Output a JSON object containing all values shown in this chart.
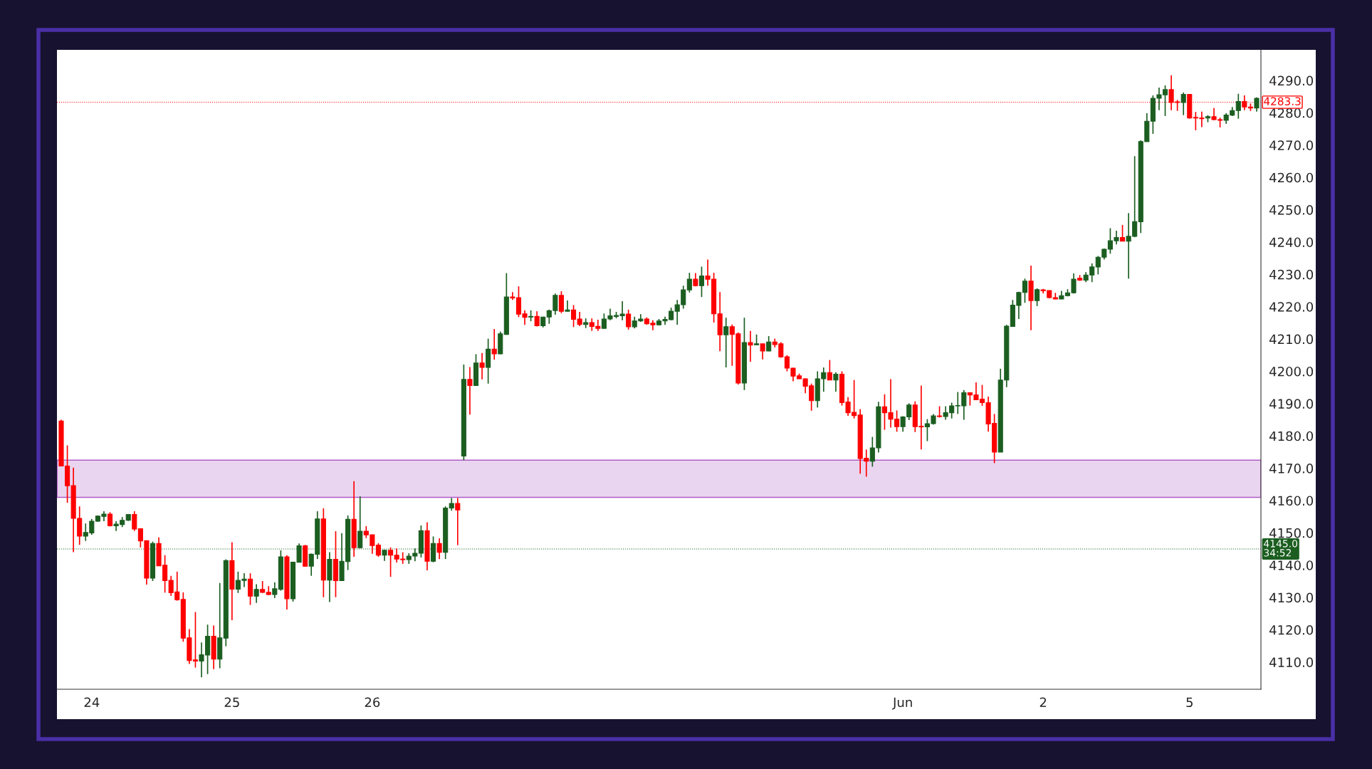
{
  "chart_data": {
    "type": "candlestick",
    "categories": [
      null,
      null,
      null,
      null,
      null,
      "24",
      null,
      null,
      null,
      null,
      null,
      null,
      null,
      null,
      null,
      null,
      null,
      null,
      null,
      null,
      null,
      null,
      null,
      null,
      null,
      null,
      null,
      null,
      "25",
      null,
      null,
      null,
      null,
      null,
      null,
      null,
      null,
      null,
      null,
      null,
      null,
      null,
      null,
      null,
      null,
      null,
      null,
      null,
      null,
      null,
      null,
      "26",
      null,
      null,
      null,
      null,
      null,
      null,
      null,
      null,
      null,
      null,
      null,
      null,
      null,
      null,
      null,
      null,
      null,
      null,
      null,
      null,
      null,
      null,
      null,
      null,
      null,
      null,
      null,
      null,
      null,
      null,
      null,
      null,
      null,
      null,
      null,
      null,
      null,
      null,
      null,
      null,
      null,
      null,
      null,
      null,
      null,
      null,
      null,
      null,
      null,
      null,
      null,
      null,
      null,
      null,
      null,
      null,
      null,
      null,
      null,
      null,
      null,
      null,
      null,
      null,
      null,
      null,
      null,
      null,
      null,
      null,
      null,
      null,
      null,
      null,
      null,
      null,
      null,
      null,
      null,
      null,
      null,
      null,
      null,
      null,
      null,
      null,
      "Jun",
      null,
      null,
      null,
      null,
      null,
      null,
      null,
      null,
      null,
      null,
      null,
      null,
      null,
      null,
      null,
      null,
      null,
      null,
      null,
      null,
      null,
      null,
      "2",
      null,
      null,
      null,
      null,
      null,
      null,
      null,
      null,
      null,
      null,
      null,
      null,
      null,
      null,
      null,
      null,
      null,
      null,
      null,
      null,
      null,
      null,
      null,
      "5",
      null,
      null,
      null,
      null,
      null,
      null,
      null,
      null,
      null,
      null,
      null
    ],
    "ohlc": [
      [
        4184.6,
        4185.0,
        4170.7,
        4170.7
      ],
      [
        4170.7,
        4177.1,
        4159.3,
        4164.6
      ],
      [
        4164.6,
        4170.2,
        4144.0,
        4154.5
      ],
      [
        4154.5,
        4158.2,
        4146.3,
        4149.0
      ],
      [
        4149.0,
        4152.9,
        4147.5,
        4150.1
      ],
      [
        4150.0,
        4154.3,
        4149.4,
        4153.6
      ],
      [
        4153.6,
        4155.4,
        4153.4,
        4155.2
      ],
      [
        4155.1,
        4156.7,
        4153.6,
        4155.8
      ],
      [
        4155.8,
        4156.4,
        4152.0,
        4152.2
      ],
      [
        4152.2,
        4153.6,
        4150.6,
        4152.7
      ],
      [
        4152.6,
        4154.9,
        4151.8,
        4153.9
      ],
      [
        4153.9,
        4155.8,
        4153.7,
        4155.7
      ],
      [
        4155.7,
        4156.7,
        4150.6,
        4151.2
      ],
      [
        4151.3,
        4151.4,
        4145.5,
        4147.5
      ],
      [
        4147.6,
        4147.6,
        4134.0,
        4136.0
      ],
      [
        4136.0,
        4147.3,
        4135.1,
        4146.7
      ],
      [
        4146.7,
        4148.6,
        4139.8,
        4139.8
      ],
      [
        4140.0,
        4143.1,
        4131.5,
        4135.2
      ],
      [
        4135.3,
        4136.7,
        4130.5,
        4131.5
      ],
      [
        4131.7,
        4138.0,
        4129.0,
        4129.3
      ],
      [
        4129.4,
        4131.6,
        4116.3,
        4117.4
      ],
      [
        4117.5,
        4120.2,
        4109.4,
        4110.5
      ],
      [
        4110.7,
        4125.5,
        4108.3,
        4110.3
      ],
      [
        4110.3,
        4116.1,
        4105.3,
        4112.3
      ],
      [
        4112.2,
        4121.6,
        4106.3,
        4118.0
      ],
      [
        4118.0,
        4121.3,
        4107.8,
        4110.9
      ],
      [
        4110.9,
        4134.5,
        4108.1,
        4117.5
      ],
      [
        4117.4,
        4141.8,
        4114.9,
        4141.4
      ],
      [
        4141.4,
        4147.1,
        4123.0,
        4132.6
      ],
      [
        4132.6,
        4138.0,
        4131.4,
        4135.3
      ],
      [
        4135.3,
        4137.5,
        4133.2,
        4135.7
      ],
      [
        4135.7,
        4137.5,
        4127.7,
        4130.4
      ],
      [
        4130.4,
        4134.1,
        4128.3,
        4132.5
      ],
      [
        4132.5,
        4135.1,
        4131.4,
        4131.6
      ],
      [
        4131.6,
        4133.5,
        4130.7,
        4130.9
      ],
      [
        4130.9,
        4134.7,
        4129.8,
        4132.7
      ],
      [
        4132.5,
        4144.6,
        4132.1,
        4142.6
      ],
      [
        4142.6,
        4143.1,
        4126.3,
        4129.6
      ],
      [
        4129.6,
        4141.1,
        4128.7,
        4140.9
      ],
      [
        4140.9,
        4146.7,
        4140.8,
        4146.0
      ],
      [
        4146.0,
        4146.3,
        4139.5,
        4139.7
      ],
      [
        4139.7,
        4143.6,
        4136.7,
        4143.4
      ],
      [
        4143.4,
        4156.7,
        4141.9,
        4154.3
      ],
      [
        4154.3,
        4157.6,
        4130.1,
        4135.4
      ],
      [
        4135.4,
        4144.0,
        4128.6,
        4141.8
      ],
      [
        4141.8,
        4150.5,
        4130.1,
        4135.2
      ],
      [
        4135.2,
        4149.9,
        4135.1,
        4141.2
      ],
      [
        4141.1,
        4155.4,
        4138.5,
        4154.2
      ],
      [
        4154.2,
        4166.0,
        4142.6,
        4145.4
      ],
      [
        4145.4,
        4161.3,
        4145.2,
        4150.5
      ],
      [
        4150.5,
        4152.1,
        4148.4,
        4149.4
      ],
      [
        4149.4,
        4149.5,
        4143.5,
        4146.1
      ],
      [
        4146.2,
        4146.8,
        4142.6,
        4143.1
      ],
      [
        4143.1,
        4144.8,
        4141.3,
        4144.6
      ],
      [
        4144.6,
        4145.5,
        4136.4,
        4143.1
      ],
      [
        4143.1,
        4145.2,
        4140.8,
        4141.9
      ],
      [
        4141.9,
        4144.0,
        4140.4,
        4141.7
      ],
      [
        4141.7,
        4143.7,
        4140.4,
        4142.8
      ],
      [
        4142.8,
        4145.2,
        4141.2,
        4143.7
      ],
      [
        4143.7,
        4152.3,
        4142.4,
        4150.7
      ],
      [
        4150.7,
        4153.3,
        4138.4,
        4141.2
      ],
      [
        4141.2,
        4148.9,
        4140.9,
        4146.7
      ],
      [
        4146.7,
        4148.3,
        4141.9,
        4144.0
      ],
      [
        4144.0,
        4158.2,
        4141.9,
        4157.7
      ],
      [
        4157.7,
        4160.8,
        4156.9,
        4159.1
      ],
      [
        4159.1,
        4160.8,
        4146.2,
        4157.1
      ],
      [
        4173.8,
        4202.1,
        4172.5,
        4197.5
      ],
      [
        4197.5,
        4201.3,
        4186.6,
        4195.6
      ],
      [
        4195.6,
        4205.3,
        4195.5,
        4202.6
      ],
      [
        4202.6,
        4205.7,
        4197.5,
        4201.2
      ],
      [
        4201.2,
        4210.1,
        4196.2,
        4206.9
      ],
      [
        4206.9,
        4213.1,
        4203.6,
        4205.4
      ],
      [
        4205.4,
        4212.3,
        4205.3,
        4211.6
      ],
      [
        4211.4,
        4230.4,
        4211.3,
        4223.0
      ],
      [
        4223.0,
        4224.5,
        4222.1,
        4222.7
      ],
      [
        4222.8,
        4226.3,
        4216.8,
        4217.7
      ],
      [
        4217.8,
        4218.9,
        4214.4,
        4216.7
      ],
      [
        4216.8,
        4218.9,
        4215.5,
        4217.0
      ],
      [
        4217.0,
        4218.6,
        4213.9,
        4214.1
      ],
      [
        4214.1,
        4216.9,
        4213.6,
        4216.8
      ],
      [
        4216.8,
        4219.1,
        4214.7,
        4218.8
      ],
      [
        4218.8,
        4224.1,
        4217.5,
        4223.5
      ],
      [
        4223.5,
        4224.8,
        4218.0,
        4218.6
      ],
      [
        4218.6,
        4221.9,
        4218.5,
        4219.0
      ],
      [
        4219.0,
        4220.5,
        4213.7,
        4216.1
      ],
      [
        4216.2,
        4218.4,
        4214.0,
        4214.5
      ],
      [
        4214.5,
        4216.4,
        4213.4,
        4215.1
      ],
      [
        4215.1,
        4216.4,
        4212.5,
        4213.9
      ],
      [
        4213.9,
        4216.0,
        4212.5,
        4213.3
      ],
      [
        4213.3,
        4217.9,
        4213.2,
        4216.2
      ],
      [
        4216.2,
        4219.4,
        4215.8,
        4217.2
      ],
      [
        4217.0,
        4218.4,
        4216.4,
        4217.3
      ],
      [
        4217.2,
        4221.7,
        4215.8,
        4217.7
      ],
      [
        4217.7,
        4219.1,
        4212.9,
        4213.8
      ],
      [
        4213.8,
        4216.9,
        4213.3,
        4215.6
      ],
      [
        4215.6,
        4217.7,
        4215.3,
        4216.2
      ],
      [
        4216.2,
        4216.7,
        4214.4,
        4214.7
      ],
      [
        4214.9,
        4215.8,
        4212.7,
        4214.4
      ],
      [
        4214.4,
        4216.2,
        4214.2,
        4215.6
      ],
      [
        4215.6,
        4216.9,
        4214.4,
        4216.1
      ],
      [
        4216.0,
        4219.7,
        4215.8,
        4218.6
      ],
      [
        4218.6,
        4222.1,
        4214.4,
        4220.6
      ],
      [
        4220.6,
        4226.5,
        4219.4,
        4225.2
      ],
      [
        4225.2,
        4230.5,
        4224.4,
        4228.5
      ],
      [
        4228.5,
        4230.4,
        4226.3,
        4226.5
      ],
      [
        4226.5,
        4232.4,
        4223.0,
        4229.5
      ],
      [
        4229.5,
        4234.6,
        4226.5,
        4228.5
      ],
      [
        4228.5,
        4230.5,
        4215.1,
        4217.8
      ],
      [
        4217.8,
        4224.5,
        4206.2,
        4211.3
      ],
      [
        4211.3,
        4216.6,
        4201.2,
        4213.8
      ],
      [
        4213.8,
        4214.5,
        4201.7,
        4211.4
      ],
      [
        4211.6,
        4212.0,
        4195.9,
        4196.4
      ],
      [
        4196.4,
        4216.6,
        4194.2,
        4208.9
      ],
      [
        4208.9,
        4212.5,
        4203.0,
        4208.1
      ],
      [
        4208.2,
        4211.4,
        4208.1,
        4208.5
      ],
      [
        4208.5,
        4208.5,
        4203.7,
        4206.3
      ],
      [
        4206.3,
        4210.9,
        4206.2,
        4209.1
      ],
      [
        4209.1,
        4210.1,
        4207.4,
        4208.3
      ],
      [
        4208.5,
        4209.0,
        4204.2,
        4204.5
      ],
      [
        4204.5,
        4205.0,
        4200.0,
        4201.0
      ],
      [
        4201.0,
        4201.1,
        4196.9,
        4198.5
      ],
      [
        4198.6,
        4199.3,
        4197.6,
        4197.7
      ],
      [
        4197.7,
        4197.8,
        4193.2,
        4195.4
      ],
      [
        4195.5,
        4196.2,
        4187.8,
        4190.9
      ],
      [
        4190.9,
        4200.0,
        4188.8,
        4197.7
      ],
      [
        4197.7,
        4201.2,
        4193.7,
        4199.6
      ],
      [
        4199.6,
        4203.5,
        4197.3,
        4197.3
      ],
      [
        4197.3,
        4199.7,
        4193.7,
        4199.1
      ],
      [
        4199.1,
        4200.0,
        4189.4,
        4190.3
      ],
      [
        4190.5,
        4192.0,
        4186.2,
        4187.2
      ],
      [
        4187.3,
        4197.3,
        4185.4,
        4186.3
      ],
      [
        4186.5,
        4188.3,
        4168.3,
        4173.0
      ],
      [
        4173.1,
        4175.8,
        4167.4,
        4172.2
      ],
      [
        4172.2,
        4179.7,
        4170.5,
        4176.3
      ],
      [
        4176.3,
        4190.6,
        4174.9,
        4189.0
      ],
      [
        4189.0,
        4192.9,
        4181.9,
        4187.2
      ],
      [
        4187.2,
        4197.6,
        4182.6,
        4185.2
      ],
      [
        4185.2,
        4187.9,
        4181.3,
        4182.9
      ],
      [
        4182.9,
        4186.1,
        4181.3,
        4185.9
      ],
      [
        4185.9,
        4190.1,
        4184.9,
        4189.6
      ],
      [
        4189.6,
        4190.7,
        4181.2,
        4182.9
      ],
      [
        4183.0,
        4195.6,
        4175.8,
        4182.8
      ],
      [
        4182.8,
        4185.2,
        4178.4,
        4183.8
      ],
      [
        4183.8,
        4186.8,
        4183.5,
        4186.2
      ],
      [
        4186.2,
        4189.2,
        4185.7,
        4186.0
      ],
      [
        4186.0,
        4189.2,
        4185.0,
        4187.2
      ],
      [
        4187.2,
        4190.3,
        4185.4,
        4189.3
      ],
      [
        4189.3,
        4193.6,
        4186.8,
        4189.4
      ],
      [
        4189.3,
        4194.2,
        4185.0,
        4193.4
      ],
      [
        4193.4,
        4193.4,
        4189.4,
        4192.7
      ],
      [
        4192.7,
        4196.6,
        4191.2,
        4191.2
      ],
      [
        4191.4,
        4195.8,
        4189.3,
        4190.3
      ],
      [
        4190.3,
        4192.2,
        4181.3,
        4183.7
      ],
      [
        4183.9,
        4186.8,
        4171.6,
        4175.0
      ],
      [
        4175.0,
        4200.8,
        4175.0,
        4197.3
      ],
      [
        4197.3,
        4214.4,
        4195.1,
        4214.0
      ],
      [
        4213.9,
        4222.1,
        4213.9,
        4220.5
      ],
      [
        4220.4,
        4224.6,
        4216.2,
        4224.4
      ],
      [
        4224.4,
        4228.7,
        4221.2,
        4227.9
      ],
      [
        4227.9,
        4232.7,
        4212.7,
        4221.9
      ],
      [
        4221.9,
        4225.7,
        4220.2,
        4225.3
      ],
      [
        4225.2,
        4225.5,
        4224.1,
        4224.9
      ],
      [
        4225.0,
        4225.0,
        4222.6,
        4222.8
      ],
      [
        4222.8,
        4224.3,
        4222.3,
        4222.4
      ],
      [
        4222.4,
        4224.9,
        4222.3,
        4223.4
      ],
      [
        4223.4,
        4225.4,
        4223.2,
        4224.3
      ],
      [
        4224.3,
        4230.3,
        4224.1,
        4228.5
      ],
      [
        4228.8,
        4229.8,
        4228.0,
        4228.2
      ],
      [
        4228.2,
        4230.7,
        4227.6,
        4229.8
      ],
      [
        4229.8,
        4233.4,
        4227.6,
        4232.3
      ],
      [
        4232.3,
        4235.7,
        4230.0,
        4235.3
      ],
      [
        4235.3,
        4238.0,
        4234.6,
        4237.8
      ],
      [
        4237.8,
        4244.3,
        4236.4,
        4240.4
      ],
      [
        4240.4,
        4243.5,
        4239.3,
        4241.4
      ],
      [
        4241.4,
        4245.3,
        4240.3,
        4240.3
      ],
      [
        4240.3,
        4249.0,
        4228.7,
        4241.8
      ],
      [
        4241.8,
        4266.6,
        4241.5,
        4246.3
      ],
      [
        4246.3,
        4271.5,
        4242.8,
        4271.1
      ],
      [
        4271.1,
        4279.9,
        4271.1,
        4277.4
      ],
      [
        4277.4,
        4285.4,
        4273.5,
        4284.5
      ],
      [
        4284.5,
        4287.8,
        4280.8,
        4285.6
      ],
      [
        4285.6,
        4288.5,
        4279.0,
        4287.2
      ],
      [
        4287.2,
        4291.6,
        4280.8,
        4283.2
      ],
      [
        4283.4,
        4284.0,
        4280.6,
        4283.2
      ],
      [
        4283.2,
        4286.3,
        4279.3,
        4285.7
      ],
      [
        4285.7,
        4285.7,
        4278.2,
        4278.4
      ],
      [
        4278.6,
        4280.3,
        4274.6,
        4278.4
      ],
      [
        4278.4,
        4280.4,
        4275.6,
        4278.2
      ],
      [
        4278.4,
        4279.3,
        4277.1,
        4278.8
      ],
      [
        4278.8,
        4281.5,
        4277.7,
        4277.9
      ],
      [
        4277.9,
        4278.5,
        4275.5,
        4277.7
      ],
      [
        4277.7,
        4279.9,
        4276.6,
        4279.3
      ],
      [
        4279.3,
        4281.8,
        4279.0,
        4280.7
      ],
      [
        4280.7,
        4285.9,
        4278.2,
        4283.5
      ],
      [
        4283.5,
        4285.4,
        4280.8,
        4281.8
      ],
      [
        4281.8,
        4282.9,
        4280.6,
        4281.5
      ],
      [
        4281.5,
        4284.8,
        4280.4,
        4284.5
      ]
    ],
    "colors": [
      "#ff0000",
      "#ff0000",
      "#ff0000",
      "#ff0000",
      "#1b5e20",
      "#1b5e20",
      "#1b5e20",
      "#1b5e20",
      "#ff0000",
      "#1b5e20",
      "#1b5e20",
      "#1b5e20",
      "#ff0000",
      "#ff0000",
      "#ff0000",
      "#1b5e20",
      "#ff0000",
      "#ff0000",
      "#ff0000",
      "#ff0000",
      "#ff0000",
      "#ff0000",
      "#ff0000",
      "#1b5e20",
      "#1b5e20",
      "#ff0000",
      "#1b5e20",
      "#1b5e20",
      "#ff0000",
      "#1b5e20",
      "#1b5e20",
      "#ff0000",
      "#1b5e20",
      "#ff0000",
      "#ff0000",
      "#1b5e20",
      "#1b5e20",
      "#ff0000",
      "#1b5e20",
      "#1b5e20",
      "#ff0000",
      "#1b5e20",
      "#1b5e20",
      "#ff0000",
      "#1b5e20",
      "#ff0000",
      "#1b5e20",
      "#1b5e20",
      "#ff0000",
      "#1b5e20",
      "#ff0000",
      "#ff0000",
      "#ff0000",
      "#1b5e20",
      "#ff0000",
      "#ff0000",
      "#ff0000",
      "#1b5e20",
      "#1b5e20",
      "#1b5e20",
      "#ff0000",
      "#1b5e20",
      "#ff0000",
      "#1b5e20",
      "#1b5e20",
      "#ff0000",
      "#1b5e20",
      "#ff0000",
      "#1b5e20",
      "#ff0000",
      "#1b5e20",
      "#ff0000",
      "#1b5e20",
      "#1b5e20",
      "#ff0000",
      "#ff0000",
      "#ff0000",
      "#1b5e20",
      "#ff0000",
      "#1b5e20",
      "#1b5e20",
      "#1b5e20",
      "#ff0000",
      "#1b5e20",
      "#ff0000",
      "#ff0000",
      "#1b5e20",
      "#ff0000",
      "#ff0000",
      "#1b5e20",
      "#1b5e20",
      "#1b5e20",
      "#1b5e20",
      "#ff0000",
      "#1b5e20",
      "#1b5e20",
      "#ff0000",
      "#ff0000",
      "#1b5e20",
      "#1b5e20",
      "#1b5e20",
      "#1b5e20",
      "#1b5e20",
      "#1b5e20",
      "#ff0000",
      "#1b5e20",
      "#ff0000",
      "#ff0000",
      "#ff0000",
      "#1b5e20",
      "#ff0000",
      "#ff0000",
      "#1b5e20",
      "#ff0000",
      "#1b5e20",
      "#ff0000",
      "#1b5e20",
      "#ff0000",
      "#ff0000",
      "#ff0000",
      "#ff0000",
      "#ff0000",
      "#ff0000",
      "#ff0000",
      "#1b5e20",
      "#1b5e20",
      "#ff0000",
      "#1b5e20",
      "#ff0000",
      "#ff0000",
      "#ff0000",
      "#ff0000",
      "#ff0000",
      "#1b5e20",
      "#1b5e20",
      "#ff0000",
      "#ff0000",
      "#ff0000",
      "#1b5e20",
      "#1b5e20",
      "#ff0000",
      "#ff0000",
      "#1b5e20",
      "#1b5e20",
      "#ff0000",
      "#1b5e20",
      "#1b5e20",
      "#1b5e20",
      "#1b5e20",
      "#ff0000",
      "#ff0000",
      "#ff0000",
      "#ff0000",
      "#ff0000",
      "#1b5e20",
      "#1b5e20",
      "#1b5e20",
      "#1b5e20",
      "#1b5e20",
      "#ff0000",
      "#1b5e20",
      "#ff0000",
      "#ff0000",
      "#ff0000",
      "#1b5e20",
      "#1b5e20",
      "#1b5e20",
      "#ff0000",
      "#1b5e20",
      "#1b5e20",
      "#1b5e20",
      "#1b5e20",
      "#1b5e20",
      "#1b5e20",
      "#ff0000",
      "#1b5e20",
      "#1b5e20",
      "#1b5e20",
      "#1b5e20",
      "#1b5e20",
      "#1b5e20",
      "#1b5e20",
      "#ff0000",
      "#ff0000",
      "#1b5e20",
      "#ff0000",
      "#ff0000",
      "#ff0000",
      "#1b5e20",
      "#ff0000",
      "#ff0000",
      "#1b5e20",
      "#1b5e20",
      "#1b5e20",
      "#ff0000",
      "#ff0000",
      "#1b5e20"
    ],
    "ylim": [
      4101.6,
      4299.5
    ],
    "yticks": [
      {
        "value": 4110,
        "label": "4110.0"
      },
      {
        "value": 4120,
        "label": "4120.0"
      },
      {
        "value": 4130,
        "label": "4130.0"
      },
      {
        "value": 4140,
        "label": "4140.0"
      },
      {
        "value": 4150,
        "label": "4150.0"
      },
      {
        "value": 4160,
        "label": "4160.0"
      },
      {
        "value": 4170,
        "label": "4170.0"
      },
      {
        "value": 4180,
        "label": "4180.0"
      },
      {
        "value": 4190,
        "label": "4190.0"
      },
      {
        "value": 4200,
        "label": "4200.0"
      },
      {
        "value": 4210,
        "label": "4210.0"
      },
      {
        "value": 4220,
        "label": "4220.0"
      },
      {
        "value": 4230,
        "label": "4230.0"
      },
      {
        "value": 4240,
        "label": "4240.0"
      },
      {
        "value": 4250,
        "label": "4250.0"
      },
      {
        "value": 4260,
        "label": "4260.0"
      },
      {
        "value": 4270,
        "label": "4270.0"
      },
      {
        "value": 4280,
        "label": "4280.0"
      },
      {
        "value": 4290,
        "label": "4290.0"
      }
    ],
    "bands": [
      {
        "axis": "y",
        "from": 4161.0,
        "to": 4172.5,
        "color": "#ead5f0"
      }
    ],
    "ref_lines": [
      {
        "axis": "y",
        "value": 4283.3,
        "label": "4283.3",
        "color": "#ff0000",
        "line_style": "dotted"
      },
      {
        "axis": "y",
        "value": 4145.0,
        "label": "4145.0\n34:52",
        "color": "#1b5e20",
        "line_style": "dotted"
      }
    ],
    "grid": false,
    "legend": false
  }
}
